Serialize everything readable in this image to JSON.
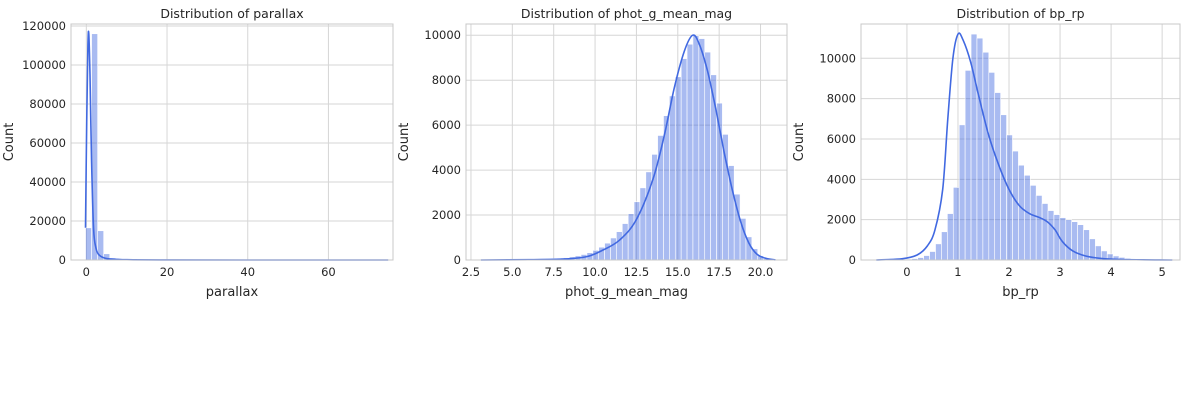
{
  "chart_data": [
    {
      "type": "histogram",
      "title": "Distribution of parallax",
      "xlabel": "parallax",
      "ylabel": "Count",
      "xlim": [
        -3.8,
        76
      ],
      "ylim": [
        0,
        121000
      ],
      "xticks": [
        0,
        20,
        40,
        60
      ],
      "xtick_labels": [
        "0",
        "20",
        "40",
        "60"
      ],
      "yticks": [
        0,
        20000,
        40000,
        60000,
        80000,
        100000,
        120000
      ],
      "ytick_labels": [
        "0",
        "20000",
        "40000",
        "60000",
        "80000",
        "100000",
        "120000"
      ],
      "grid": true,
      "bin_range": [
        -0.2,
        74.8
      ],
      "bins": 50,
      "counts": [
        16500,
        116000,
        15000,
        3200,
        1100,
        500,
        250,
        150,
        90,
        60,
        40,
        30,
        22,
        16,
        12,
        9,
        7,
        6,
        5,
        4,
        3,
        3,
        2,
        2,
        2,
        2,
        1,
        1,
        1,
        1,
        1,
        1,
        1,
        1,
        1,
        1,
        1,
        1,
        1,
        1,
        1,
        1,
        1,
        1,
        1,
        1,
        1,
        1,
        1,
        1
      ],
      "kde": [
        [
          -0.2,
          16500
        ],
        [
          0.1,
          70000
        ],
        [
          0.4,
          110000
        ],
        [
          0.6,
          116000
        ],
        [
          0.9,
          95000
        ],
        [
          1.3,
          50000
        ],
        [
          1.8,
          16000
        ],
        [
          2.4,
          6000
        ],
        [
          3.2,
          2500
        ],
        [
          4.5,
          1000
        ],
        [
          6,
          500
        ],
        [
          10,
          150
        ],
        [
          20,
          40
        ],
        [
          40,
          10
        ],
        [
          74.8,
          2
        ]
      ],
      "color": "#4169e1"
    },
    {
      "type": "histogram",
      "title": "Distribution of phot_g_mean_mag",
      "xlabel": "phot_g_mean_mag",
      "ylabel": "Count",
      "xlim": [
        2.2,
        21.6
      ],
      "ylim": [
        0,
        10500
      ],
      "xticks": [
        2.5,
        5.0,
        7.5,
        10.0,
        12.5,
        15.0,
        17.5,
        20.0
      ],
      "xtick_labels": [
        "2.5",
        "5.0",
        "7.5",
        "10.0",
        "12.5",
        "15.0",
        "17.5",
        "20.0"
      ],
      "yticks": [
        0,
        2000,
        4000,
        6000,
        8000,
        10000
      ],
      "ytick_labels": [
        "0",
        "2000",
        "4000",
        "6000",
        "8000",
        "10000"
      ],
      "grid": true,
      "bin_range": [
        3.1,
        20.9
      ],
      "bins": 50,
      "counts": [
        2,
        3,
        4,
        5,
        7,
        10,
        13,
        17,
        22,
        28,
        35,
        45,
        60,
        80,
        105,
        140,
        185,
        245,
        325,
        430,
        570,
        750,
        980,
        1260,
        1620,
        2060,
        2590,
        3210,
        3920,
        4700,
        5540,
        6420,
        7300,
        8150,
        8960,
        9600,
        9980,
        9850,
        9250,
        8240,
        6980,
        5590,
        4200,
        2930,
        1850,
        1030,
        500,
        190,
        60,
        15
      ],
      "kde": [
        [
          3.1,
          0
        ],
        [
          6.0,
          15
        ],
        [
          8.0,
          40
        ],
        [
          9.5,
          150
        ],
        [
          10.5,
          450
        ],
        [
          11.5,
          900
        ],
        [
          12.5,
          1800
        ],
        [
          13.5,
          3600
        ],
        [
          14.2,
          5600
        ],
        [
          14.8,
          7700
        ],
        [
          15.4,
          9300
        ],
        [
          15.9,
          10000
        ],
        [
          16.3,
          9600
        ],
        [
          16.8,
          8400
        ],
        [
          17.3,
          6700
        ],
        [
          17.8,
          4800
        ],
        [
          18.3,
          3100
        ],
        [
          18.8,
          1700
        ],
        [
          19.3,
          750
        ],
        [
          19.8,
          250
        ],
        [
          20.4,
          60
        ],
        [
          20.9,
          10
        ]
      ],
      "color": "#4169e1"
    },
    {
      "type": "histogram",
      "title": "Distribution of bp_rp",
      "xlabel": "bp_rp",
      "ylabel": "Count",
      "xlim": [
        -0.9,
        5.35
      ],
      "ylim": [
        0,
        11700
      ],
      "xticks": [
        0,
        1,
        2,
        3,
        4,
        5
      ],
      "xtick_labels": [
        "0",
        "1",
        "2",
        "3",
        "4",
        "5"
      ],
      "yticks": [
        0,
        2000,
        4000,
        6000,
        8000,
        10000
      ],
      "ytick_labels": [
        "0",
        "2000",
        "4000",
        "6000",
        "8000",
        "10000"
      ],
      "grid": true,
      "bin_range": [
        -0.6,
        5.2
      ],
      "bins": 50,
      "counts": [
        5,
        8,
        12,
        18,
        28,
        45,
        70,
        120,
        220,
        420,
        800,
        1400,
        2300,
        3600,
        6700,
        9400,
        11200,
        11000,
        10300,
        9300,
        8300,
        7200,
        6200,
        5400,
        4700,
        4200,
        3700,
        3200,
        2800,
        2450,
        2250,
        2100,
        2000,
        1900,
        1750,
        1500,
        1050,
        700,
        450,
        300,
        200,
        130,
        80,
        50,
        30,
        20,
        12,
        8,
        5,
        3
      ],
      "kde": [
        [
          -0.6,
          0
        ],
        [
          -0.1,
          60
        ],
        [
          0.2,
          250
        ],
        [
          0.4,
          700
        ],
        [
          0.55,
          1500
        ],
        [
          0.7,
          3500
        ],
        [
          0.8,
          7000
        ],
        [
          0.9,
          10000
        ],
        [
          1.0,
          11200
        ],
        [
          1.1,
          10900
        ],
        [
          1.25,
          9800
        ],
        [
          1.4,
          8200
        ],
        [
          1.6,
          6200
        ],
        [
          1.8,
          4700
        ],
        [
          2.0,
          3500
        ],
        [
          2.2,
          2700
        ],
        [
          2.4,
          2300
        ],
        [
          2.6,
          2100
        ],
        [
          2.75,
          1900
        ],
        [
          2.9,
          1500
        ],
        [
          3.05,
          900
        ],
        [
          3.25,
          450
        ],
        [
          3.5,
          200
        ],
        [
          3.8,
          80
        ],
        [
          4.2,
          25
        ],
        [
          5.2,
          2
        ]
      ],
      "color": "#4169e1"
    }
  ]
}
